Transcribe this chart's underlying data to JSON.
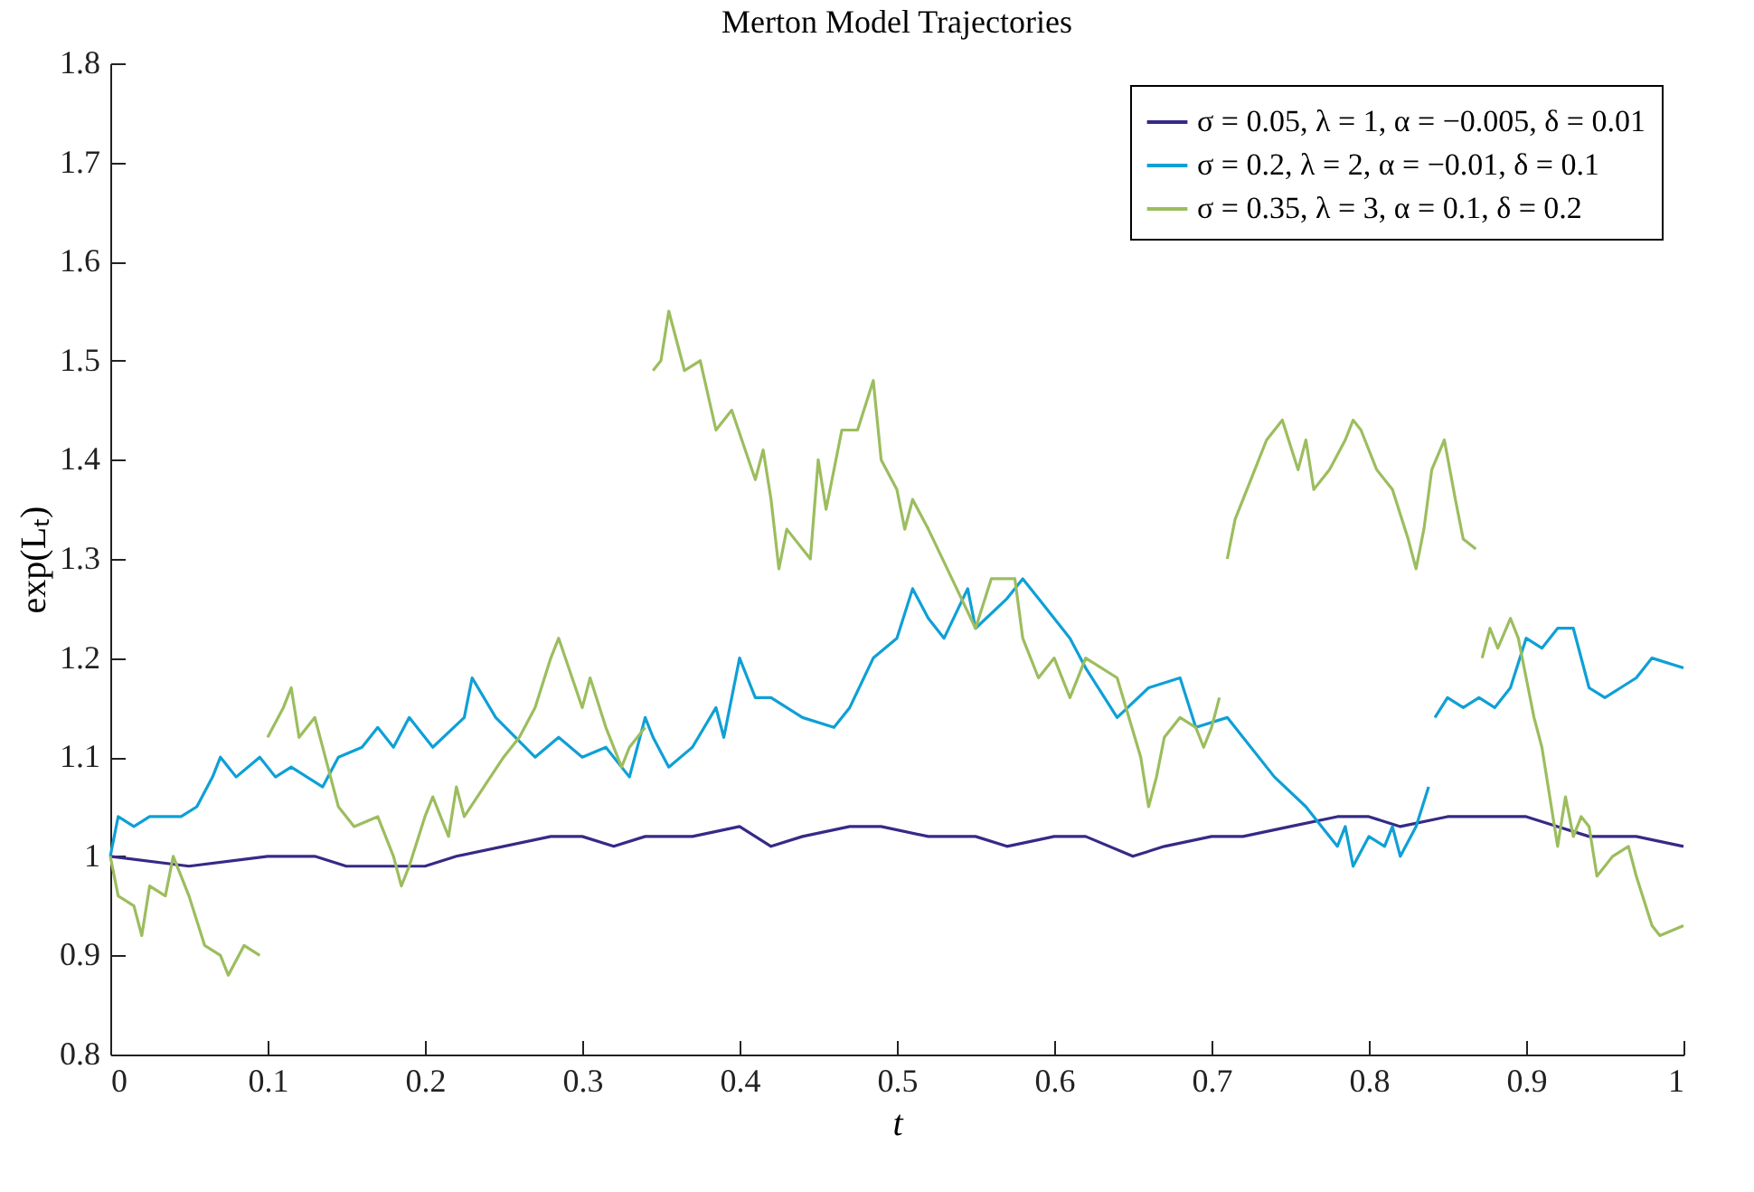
{
  "chart_data": {
    "type": "line",
    "title": "Merton Model Trajectories",
    "xlabel": "t",
    "ylabel": "exp(Lₜ)",
    "xlim": [
      0,
      1
    ],
    "ylim": [
      0.8,
      1.8
    ],
    "xticks": [
      0,
      0.1,
      0.2,
      0.3,
      0.4,
      0.5,
      0.6,
      0.7,
      0.8,
      0.9,
      1
    ],
    "yticks": [
      0.8,
      0.9,
      1,
      1.1,
      1.2,
      1.3,
      1.4,
      1.5,
      1.6,
      1.7,
      1.8
    ],
    "grid": false,
    "legend": "top right",
    "series": [
      {
        "name": "σ = 0.05, λ = 1, α = −0.005, δ = 0.01",
        "color": "#352a87",
        "x": [
          0,
          0.05,
          0.1,
          0.13,
          0.15,
          0.2,
          0.22,
          0.28,
          0.3,
          0.32,
          0.34,
          0.37,
          0.4,
          0.41,
          0.42,
          0.44,
          0.47,
          0.49,
          0.52,
          0.55,
          0.57,
          0.6,
          0.62,
          0.65,
          0.67,
          0.7,
          0.72,
          0.75,
          0.78,
          0.8,
          0.82,
          0.85,
          0.88,
          0.9,
          0.92,
          0.94,
          0.97,
          1
        ],
        "values": [
          1.0,
          0.99,
          1.0,
          1.0,
          0.99,
          0.99,
          1.0,
          1.02,
          1.02,
          1.01,
          1.02,
          1.02,
          1.03,
          1.02,
          1.01,
          1.02,
          1.03,
          1.03,
          1.02,
          1.02,
          1.01,
          1.02,
          1.02,
          1.0,
          1.01,
          1.02,
          1.02,
          1.03,
          1.04,
          1.04,
          1.03,
          1.04,
          1.04,
          1.04,
          1.03,
          1.02,
          1.02,
          1.01
        ]
      },
      {
        "name": "σ = 0.2, λ = 2, α = −0.01, δ = 0.1",
        "color": "#0ea0d6",
        "x": [
          0,
          0.005,
          0.015,
          0.025,
          0.045,
          0.055,
          0.065,
          0.07,
          0.08,
          0.095,
          0.105,
          0.115,
          0.135,
          0.145,
          0.16,
          0.17,
          0.18,
          0.19,
          0.205,
          0.225,
          0.23,
          0.245,
          0.27,
          0.285,
          0.3,
          0.315,
          0.33,
          0.34,
          0.345,
          0.355,
          0.37,
          0.385,
          0.39,
          0.4,
          0.41,
          0.42,
          0.44,
          0.46,
          0.47,
          0.485,
          0.5,
          0.51,
          0.52,
          0.53,
          0.545,
          0.55,
          0.57,
          0.58,
          0.59,
          0.61,
          0.62,
          0.64,
          0.66,
          0.68,
          0.69,
          0.71,
          0.72,
          0.74,
          0.76,
          0.77,
          0.78,
          0.785,
          0.79,
          0.8,
          0.81,
          0.815,
          0.82,
          0.83,
          0.838,
          0.84,
          0.842,
          0.85,
          0.86,
          0.87,
          0.88,
          0.89,
          0.9,
          0.91,
          0.92,
          0.93,
          0.94,
          0.95,
          0.96,
          0.97,
          0.98,
          1
        ],
        "values": [
          1.0,
          1.04,
          1.03,
          1.04,
          1.04,
          1.05,
          1.08,
          1.1,
          1.08,
          1.1,
          1.08,
          1.09,
          1.07,
          1.1,
          1.11,
          1.13,
          1.11,
          1.14,
          1.11,
          1.14,
          1.18,
          1.14,
          1.1,
          1.12,
          1.1,
          1.11,
          1.08,
          1.14,
          1.12,
          1.09,
          1.11,
          1.15,
          1.12,
          1.2,
          1.16,
          1.16,
          1.14,
          1.13,
          1.15,
          1.2,
          1.22,
          1.27,
          1.24,
          1.22,
          1.27,
          1.23,
          1.26,
          1.28,
          1.26,
          1.22,
          1.19,
          1.14,
          1.17,
          1.18,
          1.13,
          1.14,
          1.12,
          1.08,
          1.05,
          1.03,
          1.01,
          1.03,
          0.99,
          1.02,
          1.01,
          1.03,
          1.0,
          1.03,
          1.07,
          null,
          1.14,
          1.16,
          1.15,
          1.16,
          1.15,
          1.17,
          1.22,
          1.21,
          1.23,
          1.23,
          1.17,
          1.16,
          1.17,
          1.18,
          1.2,
          1.19
        ]
      },
      {
        "name": "σ = 0.35, λ = 3, α = 0.1, δ = 0.2",
        "color": "#9cbd5e",
        "x": [
          0,
          0.005,
          0.015,
          0.02,
          0.025,
          0.035,
          0.04,
          0.05,
          0.06,
          0.07,
          0.075,
          0.085,
          0.095,
          0.098,
          0.1,
          0.11,
          0.115,
          0.12,
          0.13,
          0.14,
          0.145,
          0.155,
          0.17,
          0.18,
          0.185,
          0.19,
          0.2,
          0.205,
          0.215,
          0.22,
          0.225,
          0.25,
          0.26,
          0.27,
          0.28,
          0.285,
          0.3,
          0.305,
          0.315,
          0.325,
          0.33,
          0.34,
          0.342,
          0.345,
          0.35,
          0.355,
          0.365,
          0.375,
          0.385,
          0.395,
          0.41,
          0.415,
          0.42,
          0.425,
          0.43,
          0.445,
          0.45,
          0.455,
          0.465,
          0.475,
          0.485,
          0.49,
          0.5,
          0.505,
          0.51,
          0.52,
          0.535,
          0.55,
          0.56,
          0.575,
          0.58,
          0.59,
          0.6,
          0.61,
          0.62,
          0.64,
          0.655,
          0.66,
          0.665,
          0.67,
          0.68,
          0.69,
          0.695,
          0.7,
          0.705,
          0.708,
          0.71,
          0.715,
          0.725,
          0.735,
          0.745,
          0.755,
          0.76,
          0.765,
          0.775,
          0.785,
          0.79,
          0.795,
          0.805,
          0.815,
          0.825,
          0.83,
          0.835,
          0.84,
          0.848,
          0.855,
          0.86,
          0.868,
          0.87,
          0.872,
          0.877,
          0.882,
          0.89,
          0.895,
          0.9,
          0.905,
          0.91,
          0.915,
          0.92,
          0.925,
          0.93,
          0.935,
          0.94,
          0.945,
          0.955,
          0.965,
          0.97,
          0.98,
          0.985,
          1
        ],
        "values": [
          1.0,
          0.96,
          0.95,
          0.92,
          0.97,
          0.96,
          1.0,
          0.96,
          0.91,
          0.9,
          0.88,
          0.91,
          0.9,
          null,
          1.12,
          1.15,
          1.17,
          1.12,
          1.14,
          1.08,
          1.05,
          1.03,
          1.04,
          1.0,
          0.97,
          0.99,
          1.04,
          1.06,
          1.02,
          1.07,
          1.04,
          1.1,
          1.12,
          1.15,
          1.2,
          1.22,
          1.15,
          1.18,
          1.13,
          1.09,
          1.11,
          1.13,
          null,
          1.49,
          1.5,
          1.55,
          1.49,
          1.5,
          1.43,
          1.45,
          1.38,
          1.41,
          1.36,
          1.29,
          1.33,
          1.3,
          1.4,
          1.35,
          1.43,
          1.43,
          1.48,
          1.4,
          1.37,
          1.33,
          1.36,
          1.33,
          1.28,
          1.23,
          1.28,
          1.28,
          1.22,
          1.18,
          1.2,
          1.16,
          1.2,
          1.18,
          1.1,
          1.05,
          1.08,
          1.12,
          1.14,
          1.13,
          1.11,
          1.13,
          1.16,
          null,
          1.3,
          1.34,
          1.38,
          1.42,
          1.44,
          1.39,
          1.42,
          1.37,
          1.39,
          1.42,
          1.44,
          1.43,
          1.39,
          1.37,
          1.32,
          1.29,
          1.33,
          1.39,
          1.42,
          1.36,
          1.32,
          1.31,
          null,
          1.2,
          1.23,
          1.21,
          1.24,
          1.22,
          1.18,
          1.14,
          1.11,
          1.06,
          1.01,
          1.06,
          1.02,
          1.04,
          1.03,
          0.98,
          1.0,
          1.01,
          0.98,
          0.93,
          0.92,
          0.93
        ]
      }
    ]
  }
}
